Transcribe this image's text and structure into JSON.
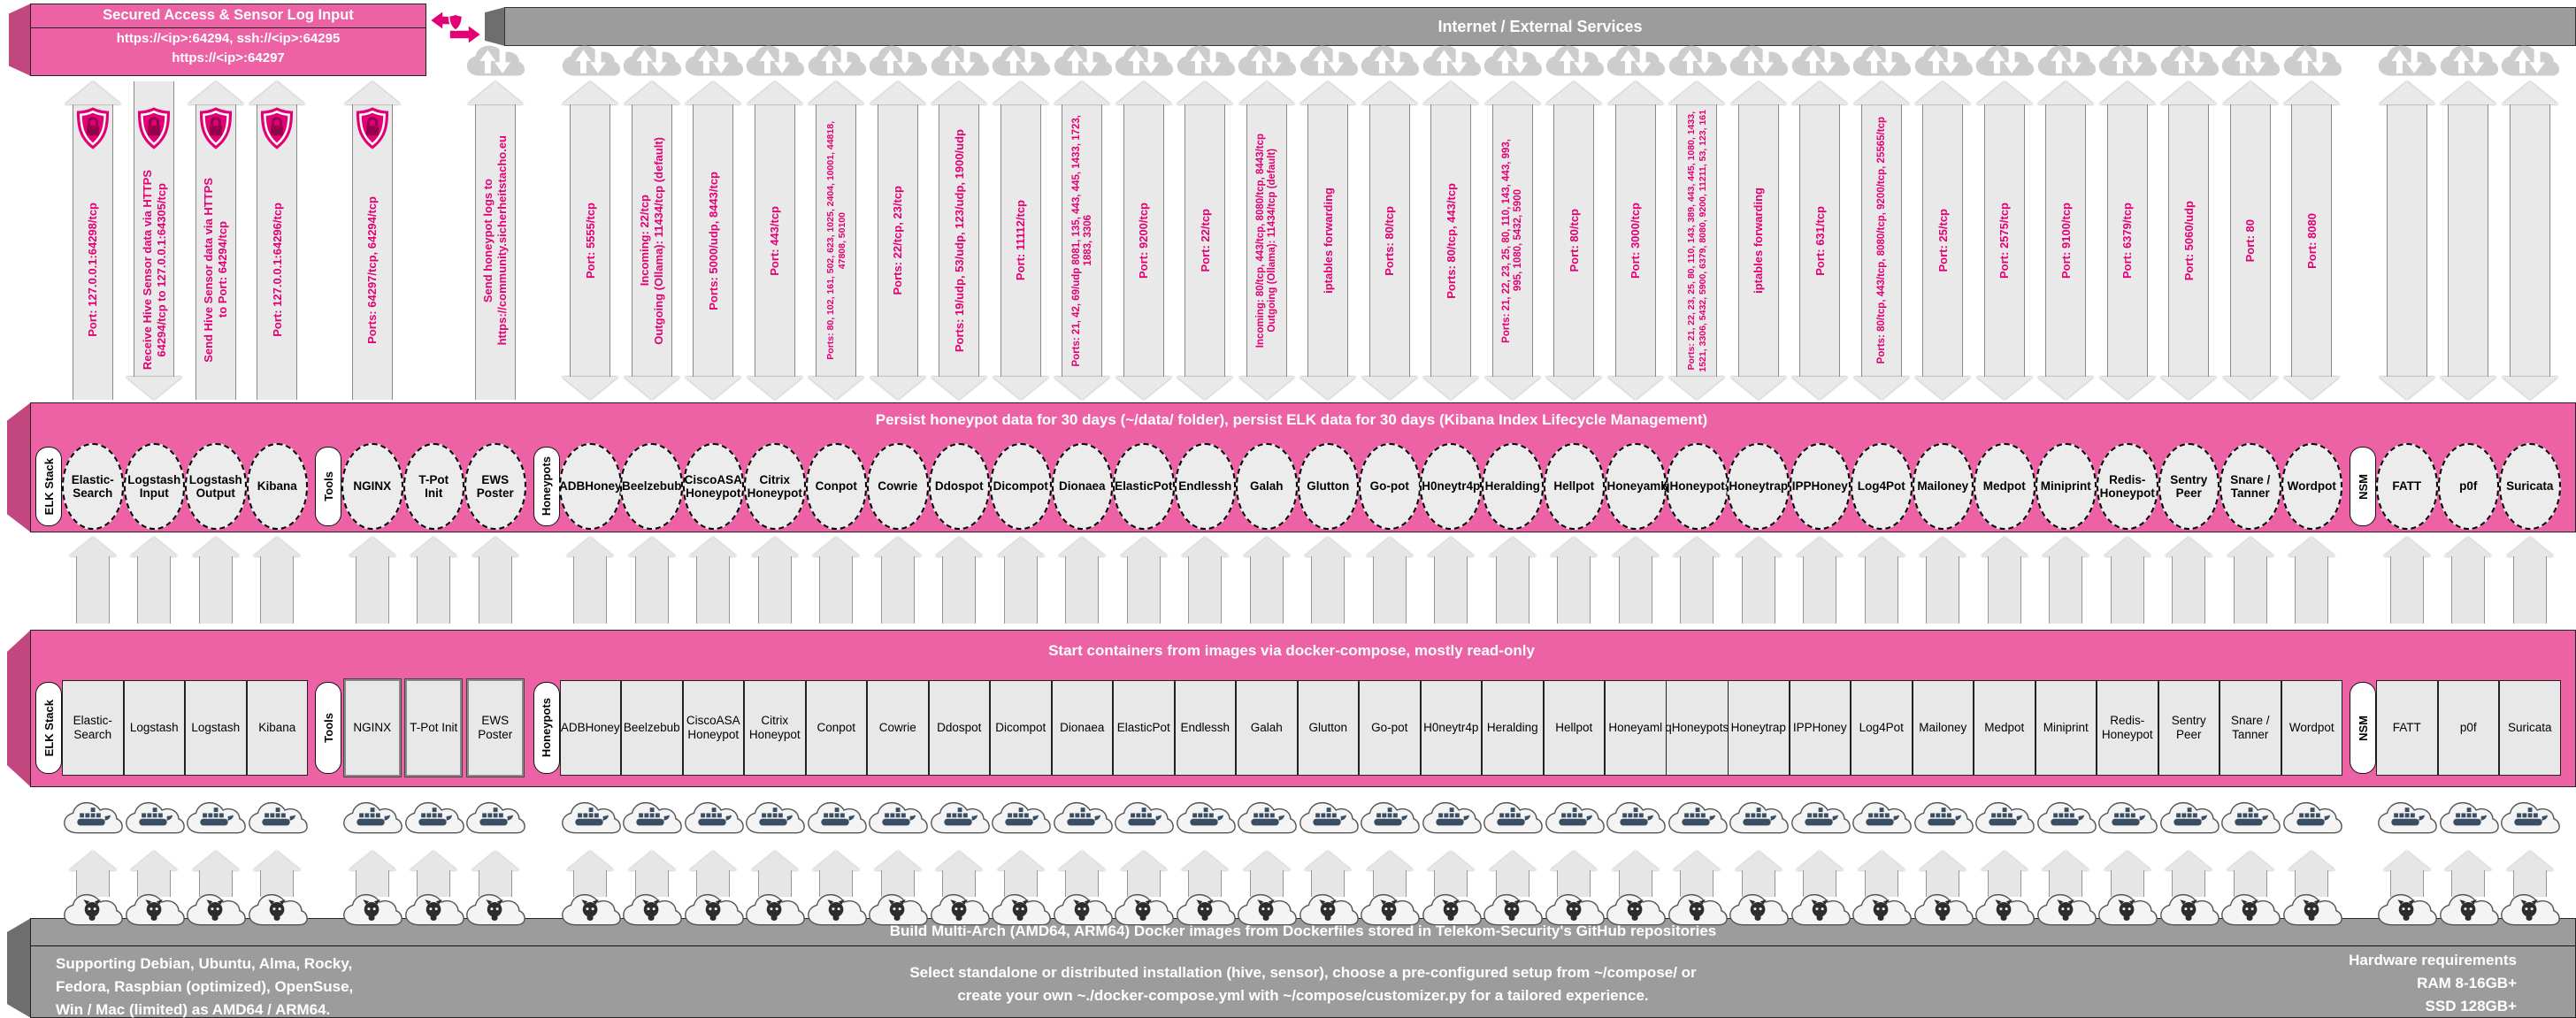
{
  "secured": {
    "title": "Secured Access & Sensor Log Input",
    "lines": [
      "https://<ip>:64294, ssh://<ip>:64295",
      "https://<ip>:64297"
    ]
  },
  "banners": {
    "internet": "Internet / External Services",
    "persist": "Persist honeypot data for 30 days (~/data/ folder), persist ELK data for 30 days (Kibana Index Lifecycle Management)",
    "start": "Start containers from images via docker-compose, mostly read-only",
    "build": "Build Multi-Arch (AMD64, ARM64) Docker images from Dockerfiles stored in Telekom-Security's GitHub repositories"
  },
  "bottom": {
    "left": [
      "Supporting Debian, Ubuntu, Alma, Rocky,",
      "Fedora, Raspbian (optimized), OpenSuse,",
      "Win / Mac (limited) as AMD64 / ARM64."
    ],
    "center": [
      "Select standalone or distributed installation (hive, sensor), choose a pre-configured setup from ~/compose/ or",
      "create your own ~./docker-compose.yml with ~/compose/customizer.py for a tailored experience."
    ],
    "right": [
      "Hardware requirements",
      "RAM 8-16GB+",
      "SSD 128GB+"
    ]
  },
  "colors": {
    "magenta": "#e20074",
    "pink_face": "#ec62a5",
    "pink_bevel": "#c2477f",
    "gray_face": "#9c9c9c",
    "gray_bevel": "#6e6e6e",
    "arrow_fill": "#e9e9e9"
  },
  "icons": {
    "shield": "shield-lock-icon",
    "exchange": "secure-exchange-icon",
    "internet_cloud": "cloud-updown-icon",
    "docker_cloud": "docker-cloud-icon",
    "github_cloud": "github-cloud-icon"
  },
  "sections": [
    {
      "id": "elk",
      "label": "ELK Stack",
      "items": [
        {
          "name": "Elastic-Search",
          "node_lines": [
            "Elastic-",
            "Search"
          ],
          "image_lines": [
            "Elastic-",
            "Search"
          ],
          "top": {
            "kind": "shield",
            "dir": "up",
            "cloud": false,
            "label": [
              "Port: 127.0.0.1:64298/tcp"
            ]
          }
        },
        {
          "name": "Logstash Input",
          "node_lines": [
            "Logstash",
            "Input"
          ],
          "image_lines": [
            "Logstash"
          ],
          "top": {
            "kind": "shield",
            "dir": "down",
            "cloud": false,
            "label": [
              "Receive Hive Sensor data via HTTPS",
              "64294/tcp to 127.0.0.1:64305/tcp"
            ]
          }
        },
        {
          "name": "Logstash Output",
          "node_lines": [
            "Logstash",
            "Output"
          ],
          "image_lines": [
            "Logstash"
          ],
          "top": {
            "kind": "shield",
            "dir": "up",
            "cloud": false,
            "label": [
              "Send Hive Sensor data via HTTPS",
              "to Port: 64294/tcp"
            ]
          }
        },
        {
          "name": "Kibana",
          "node_lines": [
            "Kibana"
          ],
          "image_lines": [
            "Kibana"
          ],
          "top": {
            "kind": "shield",
            "dir": "up",
            "cloud": false,
            "label": [
              "Port: 127.0.0.1:64296/tcp"
            ]
          }
        }
      ]
    },
    {
      "id": "tools",
      "label": "Tools",
      "items": [
        {
          "name": "NGINX",
          "node_lines": [
            "NGINX"
          ],
          "image_lines": [
            "NGINX"
          ],
          "top": {
            "kind": "shield",
            "dir": "up",
            "cloud": false,
            "label": [
              "Ports: 64297/tcp, 64294/tcp"
            ]
          }
        },
        {
          "name": "T-Pot Init",
          "node_lines": [
            "T-Pot",
            "Init"
          ],
          "image_lines": [
            "T-Pot Init"
          ],
          "top": null
        },
        {
          "name": "EWS Poster",
          "node_lines": [
            "EWS",
            "Poster"
          ],
          "image_lines": [
            "EWS",
            "Poster"
          ],
          "top": {
            "kind": "plain",
            "dir": "up",
            "cloud": true,
            "label": [
              "Send honeypot logs to",
              "https://community.sicherheitstacho.eu"
            ]
          }
        }
      ]
    },
    {
      "id": "honeypots",
      "label": "Honeypots",
      "items": [
        {
          "name": "ADBHoney",
          "node_lines": [
            "ADBHoney"
          ],
          "image_lines": [
            "ADBHoney"
          ],
          "top": {
            "kind": "plain",
            "dir": "both",
            "cloud": true,
            "label": [
              "Port: 5555/tcp"
            ]
          }
        },
        {
          "name": "Beelzebub",
          "node_lines": [
            "Beelzebub"
          ],
          "image_lines": [
            "Beelzebub"
          ],
          "top": {
            "kind": "plain",
            "dir": "both",
            "cloud": true,
            "label": [
              "Incoming: 22/tcp",
              "Outgoing (Ollama): 11434/tcp (default)"
            ]
          }
        },
        {
          "name": "CiscoASA Honeypot",
          "node_lines": [
            "CiscoASA",
            "Honeypot"
          ],
          "image_lines": [
            "CiscoASA",
            "Honeypot"
          ],
          "top": {
            "kind": "plain",
            "dir": "both",
            "cloud": true,
            "label": [
              "Ports: 5000/udp, 8443/tcp"
            ]
          }
        },
        {
          "name": "Citrix Honeypot",
          "node_lines": [
            "Citrix",
            "Honeypot"
          ],
          "image_lines": [
            "Citrix",
            "Honeypot"
          ],
          "top": {
            "kind": "plain",
            "dir": "both",
            "cloud": true,
            "label": [
              "Port: 443/tcp"
            ]
          }
        },
        {
          "name": "Conpot",
          "node_lines": [
            "Conpot"
          ],
          "image_lines": [
            "Conpot"
          ],
          "top": {
            "kind": "plain",
            "dir": "both",
            "cloud": true,
            "label": [
              "Ports: 80, 102, 161, 502, 623, 1025, 2404, 10001, 44818,",
              "47808, 50100"
            ]
          }
        },
        {
          "name": "Cowrie",
          "node_lines": [
            "Cowrie"
          ],
          "image_lines": [
            "Cowrie"
          ],
          "top": {
            "kind": "plain",
            "dir": "both",
            "cloud": true,
            "label": [
              "Ports: 22/tcp, 23/tcp"
            ]
          }
        },
        {
          "name": "Ddospot",
          "node_lines": [
            "Ddospot"
          ],
          "image_lines": [
            "Ddospot"
          ],
          "top": {
            "kind": "plain",
            "dir": "both",
            "cloud": true,
            "label": [
              "Ports: 19/udp, 53/udp, 123/udp, 1900/udp"
            ]
          }
        },
        {
          "name": "Dicompot",
          "node_lines": [
            "Dicompot"
          ],
          "image_lines": [
            "Dicompot"
          ],
          "top": {
            "kind": "plain",
            "dir": "both",
            "cloud": true,
            "label": [
              "Port: 11112/tcp"
            ]
          }
        },
        {
          "name": "Dionaea",
          "node_lines": [
            "Dionaea"
          ],
          "image_lines": [
            "Dionaea"
          ],
          "top": {
            "kind": "plain",
            "dir": "both",
            "cloud": true,
            "label": [
              "Ports: 21, 42, 69/udp 8081, 135, 443, 445, 1433, 1723,",
              "1883, 3306"
            ]
          }
        },
        {
          "name": "ElasticPot",
          "node_lines": [
            "ElasticPot"
          ],
          "image_lines": [
            "ElasticPot"
          ],
          "top": {
            "kind": "plain",
            "dir": "both",
            "cloud": true,
            "label": [
              "Port: 9200/tcp"
            ]
          }
        },
        {
          "name": "Endlessh",
          "node_lines": [
            "Endlessh"
          ],
          "image_lines": [
            "Endlessh"
          ],
          "top": {
            "kind": "plain",
            "dir": "both",
            "cloud": true,
            "label": [
              "Port: 22/tcp"
            ]
          }
        },
        {
          "name": "Galah",
          "node_lines": [
            "Galah"
          ],
          "image_lines": [
            "Galah"
          ],
          "top": {
            "kind": "plain",
            "dir": "both",
            "cloud": true,
            "label": [
              "Incoming: 80/tcp, 443/tcp, 8080/tcp, 8443/tcp",
              "Outgoing (Ollama): 11434/tcp (default)"
            ]
          }
        },
        {
          "name": "Glutton",
          "node_lines": [
            "Glutton"
          ],
          "image_lines": [
            "Glutton"
          ],
          "top": {
            "kind": "plain",
            "dir": "both",
            "cloud": true,
            "label": [
              "iptables forwarding"
            ]
          }
        },
        {
          "name": "Go-pot",
          "node_lines": [
            "Go-pot"
          ],
          "image_lines": [
            "Go-pot"
          ],
          "top": {
            "kind": "plain",
            "dir": "both",
            "cloud": true,
            "label": [
              "Ports: 80/tcp"
            ]
          }
        },
        {
          "name": "H0neytr4p",
          "node_lines": [
            "H0neytr4p"
          ],
          "image_lines": [
            "H0neytr4p"
          ],
          "top": {
            "kind": "plain",
            "dir": "both",
            "cloud": true,
            "label": [
              "Ports: 80/tcp, 443/tcp"
            ]
          }
        },
        {
          "name": "Heralding",
          "node_lines": [
            "Heralding"
          ],
          "image_lines": [
            "Heralding"
          ],
          "top": {
            "kind": "plain",
            "dir": "both",
            "cloud": true,
            "label": [
              "Ports: 21, 22, 23, 25, 80, 110, 143, 443, 993,",
              "995, 1080, 5432, 5900"
            ]
          }
        },
        {
          "name": "Hellpot",
          "node_lines": [
            "Hellpot"
          ],
          "image_lines": [
            "Hellpot"
          ],
          "top": {
            "kind": "plain",
            "dir": "both",
            "cloud": true,
            "label": [
              "Port: 80/tcp"
            ]
          }
        },
        {
          "name": "Honeyaml",
          "node_lines": [
            "Honeyaml"
          ],
          "image_lines": [
            "Honeyaml"
          ],
          "top": {
            "kind": "plain",
            "dir": "both",
            "cloud": true,
            "label": [
              "Port: 3000/tcp"
            ]
          }
        },
        {
          "name": "qHoneypots",
          "node_lines": [
            "qHoneypots"
          ],
          "image_lines": [
            "qHoneypots"
          ],
          "top": {
            "kind": "plain",
            "dir": "both",
            "cloud": true,
            "label": [
              "Ports: 21, 22, 23, 25, 80, 110, 143, 389, 443, 445, 1080, 1433,",
              "1521, 3306, 5432, 5900, 6379, 8080, 9200, 11211, 53, 123, 161"
            ]
          }
        },
        {
          "name": "Honeytrap",
          "node_lines": [
            "Honeytrap"
          ],
          "image_lines": [
            "Honeytrap"
          ],
          "top": {
            "kind": "plain",
            "dir": "both",
            "cloud": true,
            "label": [
              "iptables forwarding"
            ]
          }
        },
        {
          "name": "IPPHoney",
          "node_lines": [
            "IPPHoney"
          ],
          "image_lines": [
            "IPPHoney"
          ],
          "top": {
            "kind": "plain",
            "dir": "both",
            "cloud": true,
            "label": [
              "Port: 631/tcp"
            ]
          }
        },
        {
          "name": "Log4Pot",
          "node_lines": [
            "Log4Pot"
          ],
          "image_lines": [
            "Log4Pot"
          ],
          "top": {
            "kind": "plain",
            "dir": "both",
            "cloud": true,
            "label": [
              "Ports: 80/tcp, 443/tcp, 8080/tcp, 9200/tcp, 25565/tcp"
            ]
          }
        },
        {
          "name": "Mailoney",
          "node_lines": [
            "Mailoney"
          ],
          "image_lines": [
            "Mailoney"
          ],
          "top": {
            "kind": "plain",
            "dir": "both",
            "cloud": true,
            "label": [
              "Port: 25/tcp"
            ]
          }
        },
        {
          "name": "Medpot",
          "node_lines": [
            "Medpot"
          ],
          "image_lines": [
            "Medpot"
          ],
          "top": {
            "kind": "plain",
            "dir": "both",
            "cloud": true,
            "label": [
              "Port: 2575/tcp"
            ]
          }
        },
        {
          "name": "Miniprint",
          "node_lines": [
            "Miniprint"
          ],
          "image_lines": [
            "Miniprint"
          ],
          "top": {
            "kind": "plain",
            "dir": "both",
            "cloud": true,
            "label": [
              "Port: 9100/tcp"
            ]
          }
        },
        {
          "name": "Redis-Honeypot",
          "node_lines": [
            "Redis-",
            "Honeypot"
          ],
          "image_lines": [
            "Redis-",
            "Honeypot"
          ],
          "top": {
            "kind": "plain",
            "dir": "both",
            "cloud": true,
            "label": [
              "Port: 6379/tcp"
            ]
          }
        },
        {
          "name": "Sentry Peer",
          "node_lines": [
            "Sentry",
            "Peer"
          ],
          "image_lines": [
            "Sentry",
            "Peer"
          ],
          "top": {
            "kind": "plain",
            "dir": "both",
            "cloud": true,
            "label": [
              "Port: 5060/udp"
            ]
          }
        },
        {
          "name": "Snare / Tanner",
          "node_lines": [
            "Snare /",
            "Tanner"
          ],
          "image_lines": [
            "Snare /",
            "Tanner"
          ],
          "top": {
            "kind": "plain",
            "dir": "both",
            "cloud": true,
            "label": [
              "Port: 80"
            ]
          }
        },
        {
          "name": "Wordpot",
          "node_lines": [
            "Wordpot"
          ],
          "image_lines": [
            "Wordpot"
          ],
          "top": {
            "kind": "plain",
            "dir": "both",
            "cloud": true,
            "label": [
              "Port: 8080"
            ]
          }
        }
      ]
    },
    {
      "id": "nsm",
      "label": "NSM",
      "items": [
        {
          "name": "FATT",
          "node_lines": [
            "FATT"
          ],
          "image_lines": [
            "FATT"
          ],
          "top": {
            "kind": "plain",
            "dir": "both",
            "cloud": true,
            "label": []
          }
        },
        {
          "name": "p0f",
          "node_lines": [
            "p0f"
          ],
          "image_lines": [
            "p0f"
          ],
          "top": {
            "kind": "plain",
            "dir": "both",
            "cloud": true,
            "label": []
          }
        },
        {
          "name": "Suricata",
          "node_lines": [
            "Suricata"
          ],
          "image_lines": [
            "Suricata"
          ],
          "top": {
            "kind": "plain",
            "dir": "both",
            "cloud": true,
            "label": []
          }
        }
      ]
    }
  ]
}
